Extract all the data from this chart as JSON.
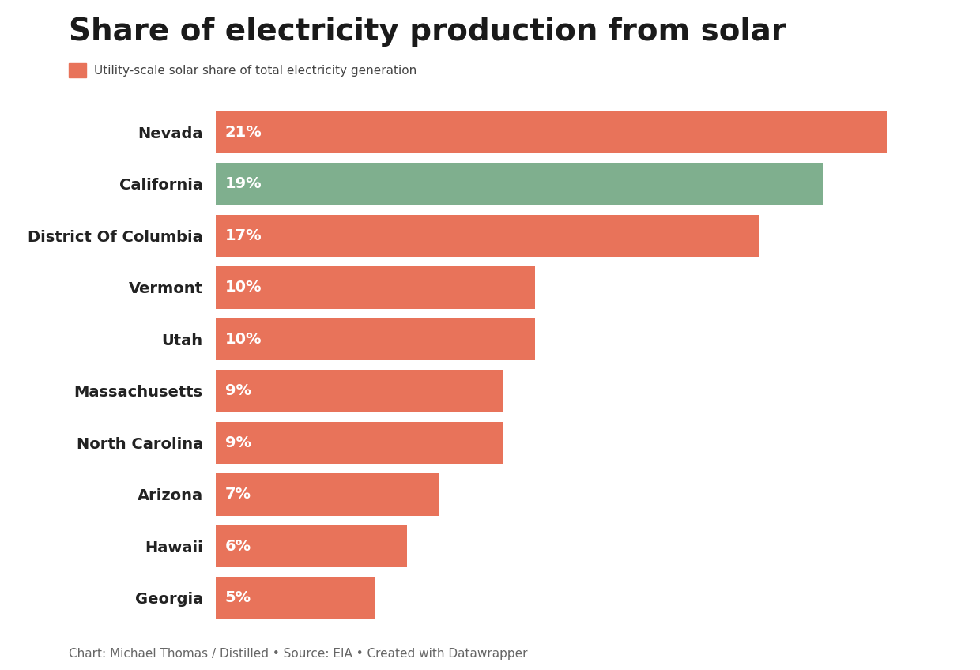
{
  "title": "Share of electricity production from solar",
  "legend_label": "Utility-scale solar share of total electricity generation",
  "categories": [
    "Georgia",
    "Hawaii",
    "Arizona",
    "North Carolina",
    "Massachusetts",
    "Utah",
    "Vermont",
    "District Of Columbia",
    "California",
    "Nevada"
  ],
  "values": [
    5,
    6,
    7,
    9,
    9,
    10,
    10,
    17,
    19,
    21
  ],
  "labels": [
    "5%",
    "6%",
    "7%",
    "9%",
    "9%",
    "10%",
    "10%",
    "17%",
    "19%",
    "21%"
  ],
  "bar_colors": [
    "#E8735A",
    "#E8735A",
    "#E8735A",
    "#E8735A",
    "#E8735A",
    "#E8735A",
    "#E8735A",
    "#E8735A",
    "#7FAF8E",
    "#E8735A"
  ],
  "legend_color": "#E8735A",
  "background_color": "#FFFFFF",
  "title_fontsize": 28,
  "label_fontsize": 14,
  "bar_label_fontsize": 14,
  "footnote": "Chart: Michael Thomas / Distilled • Source: EIA • Created with Datawrapper",
  "footnote_fontsize": 11,
  "xlim": [
    0,
    23
  ],
  "bar_height": 0.82
}
